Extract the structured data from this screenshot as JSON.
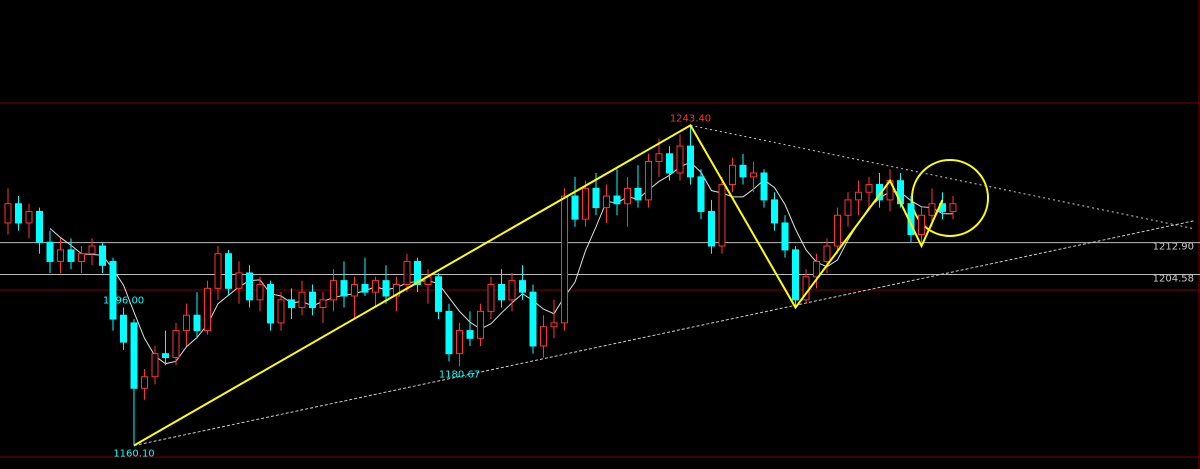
{
  "chart_data": {
    "type": "candlestick",
    "up_color": "#ff3232",
    "down_color": "#00ffff",
    "ma_color": "#e0e0e0",
    "zigzag_color": "#ffff00",
    "ma_period": 5,
    "ylim": [
      1154,
      1276
    ],
    "levels": [
      {
        "value": 1212.9,
        "label": "1212.90"
      },
      {
        "value": 1204.58,
        "label": "1204.58"
      }
    ],
    "annotations": [
      {
        "value": 1243.4,
        "label": "1243.40",
        "color": "#ff3232"
      },
      {
        "value": 1196,
        "label": "1196.00",
        "color": "#00ffff"
      },
      {
        "value": 1180.67,
        "label": "1180.67",
        "color": "#00ffff"
      },
      {
        "value": 1160.1,
        "label": "1160.10",
        "color": "#00ffff"
      }
    ],
    "zigzag": [
      [
        12,
        1160.1
      ],
      [
        65,
        1243.4
      ],
      [
        75,
        1196
      ],
      [
        84,
        1229
      ],
      [
        87,
        1212
      ],
      [
        89,
        1224
      ]
    ],
    "trendlines": [
      [
        [
          12,
          1160.1
        ],
        [
          113,
          1218.6
        ]
      ],
      [
        [
          65,
          1243.4
        ],
        [
          113,
          1216.5
        ]
      ]
    ],
    "ohlc": [
      [
        1218,
        1227,
        1215,
        1223
      ],
      [
        1223,
        1225,
        1216,
        1218
      ],
      [
        1218,
        1223,
        1214,
        1221
      ],
      [
        1221,
        1222,
        1210,
        1213
      ],
      [
        1213,
        1216,
        1205,
        1208
      ],
      [
        1208,
        1214,
        1205,
        1211
      ],
      [
        1211,
        1214,
        1206,
        1208
      ],
      [
        1208,
        1212,
        1205,
        1210
      ],
      [
        1210,
        1214,
        1207,
        1212
      ],
      [
        1212,
        1213,
        1205,
        1207
      ],
      [
        1208,
        1209,
        1190,
        1193
      ],
      [
        1194,
        1196,
        1185,
        1187
      ],
      [
        1192,
        1193,
        1160.1,
        1175
      ],
      [
        1175,
        1180,
        1172,
        1178
      ],
      [
        1178,
        1186,
        1176,
        1184
      ],
      [
        1184,
        1190,
        1181,
        1183
      ],
      [
        1183,
        1192,
        1181,
        1190
      ],
      [
        1190,
        1197,
        1186,
        1194
      ],
      [
        1194,
        1200,
        1188,
        1190
      ],
      [
        1190,
        1203,
        1189,
        1201
      ],
      [
        1201,
        1212,
        1198,
        1210
      ],
      [
        1210,
        1211,
        1199,
        1201
      ],
      [
        1201,
        1208,
        1197,
        1205
      ],
      [
        1205,
        1207,
        1196,
        1198
      ],
      [
        1198,
        1204,
        1195,
        1202
      ],
      [
        1202,
        1203,
        1190,
        1192
      ],
      [
        1192,
        1200,
        1190,
        1198
      ],
      [
        1198,
        1201,
        1193,
        1196
      ],
      [
        1196,
        1203,
        1194,
        1200
      ],
      [
        1200,
        1202,
        1194,
        1196
      ],
      [
        1196,
        1200,
        1192,
        1198
      ],
      [
        1198,
        1206,
        1195,
        1203
      ],
      [
        1203,
        1208,
        1196,
        1199
      ],
      [
        1199,
        1204,
        1193,
        1202
      ],
      [
        1202,
        1209,
        1199,
        1200
      ],
      [
        1200,
        1204,
        1196,
        1203
      ],
      [
        1203,
        1207,
        1197,
        1199
      ],
      [
        1199,
        1204,
        1195,
        1202
      ],
      [
        1202,
        1210,
        1200,
        1208
      ],
      [
        1208,
        1209,
        1200,
        1202
      ],
      [
        1202,
        1206,
        1197,
        1204
      ],
      [
        1204,
        1205,
        1193,
        1195
      ],
      [
        1195,
        1197,
        1182,
        1184
      ],
      [
        1184,
        1192,
        1180.67,
        1190
      ],
      [
        1190,
        1195,
        1186,
        1188
      ],
      [
        1188,
        1197,
        1186,
        1195
      ],
      [
        1195,
        1204,
        1193,
        1202
      ],
      [
        1202,
        1206,
        1196,
        1198
      ],
      [
        1198,
        1205,
        1195,
        1203
      ],
      [
        1203,
        1207,
        1198,
        1200
      ],
      [
        1200,
        1202,
        1184,
        1186
      ],
      [
        1186,
        1194,
        1183,
        1191
      ],
      [
        1191,
        1198,
        1188,
        1192
      ],
      [
        1192,
        1227,
        1190,
        1225
      ],
      [
        1225,
        1230,
        1217,
        1219
      ],
      [
        1219,
        1229,
        1217,
        1227
      ],
      [
        1227,
        1231,
        1220,
        1222
      ],
      [
        1222,
        1228,
        1218,
        1225
      ],
      [
        1225,
        1232,
        1220,
        1223
      ],
      [
        1223,
        1230,
        1217,
        1227
      ],
      [
        1227,
        1233,
        1222,
        1224
      ],
      [
        1224,
        1236,
        1222,
        1234
      ],
      [
        1234,
        1240,
        1230,
        1236
      ],
      [
        1236,
        1238,
        1229,
        1231
      ],
      [
        1231,
        1241,
        1229,
        1238
      ],
      [
        1238,
        1243.4,
        1228,
        1230
      ],
      [
        1230,
        1232,
        1219,
        1221
      ],
      [
        1221,
        1224,
        1210,
        1212
      ],
      [
        1212,
        1230,
        1210,
        1228
      ],
      [
        1228,
        1235,
        1226,
        1233
      ],
      [
        1233,
        1236,
        1228,
        1230
      ],
      [
        1230,
        1234,
        1226,
        1231
      ],
      [
        1231,
        1232,
        1222,
        1224
      ],
      [
        1224,
        1226,
        1216,
        1218
      ],
      [
        1218,
        1220,
        1209,
        1211
      ],
      [
        1211,
        1212,
        1196,
        1198
      ],
      [
        1198,
        1206,
        1197,
        1204
      ],
      [
        1204,
        1210,
        1201,
        1208
      ],
      [
        1208,
        1214,
        1205,
        1212
      ],
      [
        1212,
        1222,
        1210,
        1220
      ],
      [
        1220,
        1226,
        1217,
        1224
      ],
      [
        1224,
        1229,
        1220,
        1226
      ],
      [
        1226,
        1230,
        1222,
        1228
      ],
      [
        1228,
        1231,
        1222,
        1224
      ],
      [
        1224,
        1232,
        1221,
        1229
      ],
      [
        1229,
        1231,
        1222,
        1223
      ],
      [
        1223,
        1225,
        1213,
        1215
      ],
      [
        1215,
        1222,
        1212,
        1220
      ],
      [
        1220,
        1227,
        1217,
        1223
      ],
      [
        1223,
        1226,
        1219,
        1221
      ],
      [
        1221,
        1225,
        1219,
        1223
      ]
    ]
  }
}
